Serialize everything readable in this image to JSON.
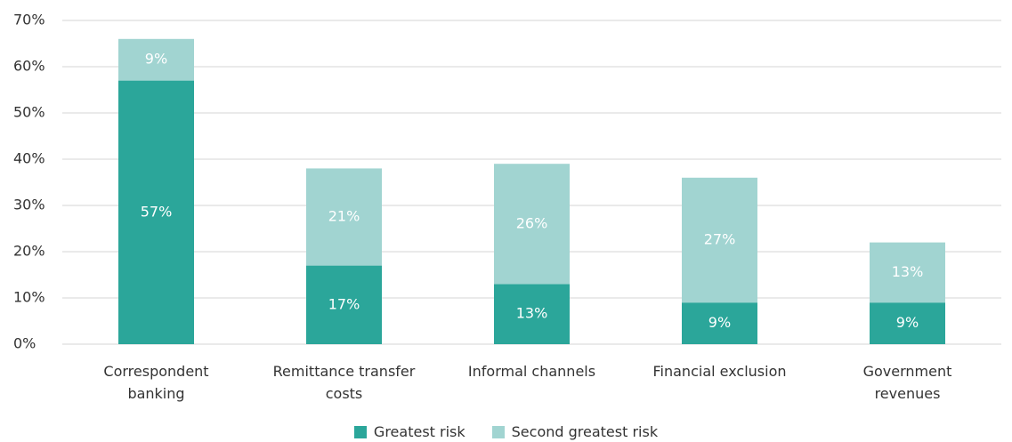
{
  "chart_data": {
    "type": "stacked-bar",
    "categories": [
      "Correspondent\nbanking",
      "Remittance transfer\ncosts",
      "Informal channels",
      "Financial exclusion",
      "Government\nrevenues"
    ],
    "series": [
      {
        "name": "Greatest risk",
        "color": "#2ba69a",
        "values": [
          57,
          17,
          13,
          9,
          9
        ],
        "value_labels": [
          "57%",
          "17%",
          "13%",
          "9%",
          "9%"
        ]
      },
      {
        "name": "Second greatest risk",
        "color": "#a1d4d1",
        "values": [
          9,
          21,
          26,
          27,
          13
        ],
        "value_labels": [
          "9%",
          "21%",
          "26%",
          "27%",
          "13%"
        ]
      }
    ],
    "ylim": [
      0,
      70
    ],
    "yticks": [
      {
        "value": 0,
        "label": "0%"
      },
      {
        "value": 10,
        "label": "10%"
      },
      {
        "value": 20,
        "label": "20%"
      },
      {
        "value": 30,
        "label": "30%"
      },
      {
        "value": 40,
        "label": "40%"
      },
      {
        "value": 50,
        "label": "50%"
      },
      {
        "value": 60,
        "label": "60%"
      },
      {
        "value": 70,
        "label": "70%"
      }
    ],
    "grid": true
  }
}
